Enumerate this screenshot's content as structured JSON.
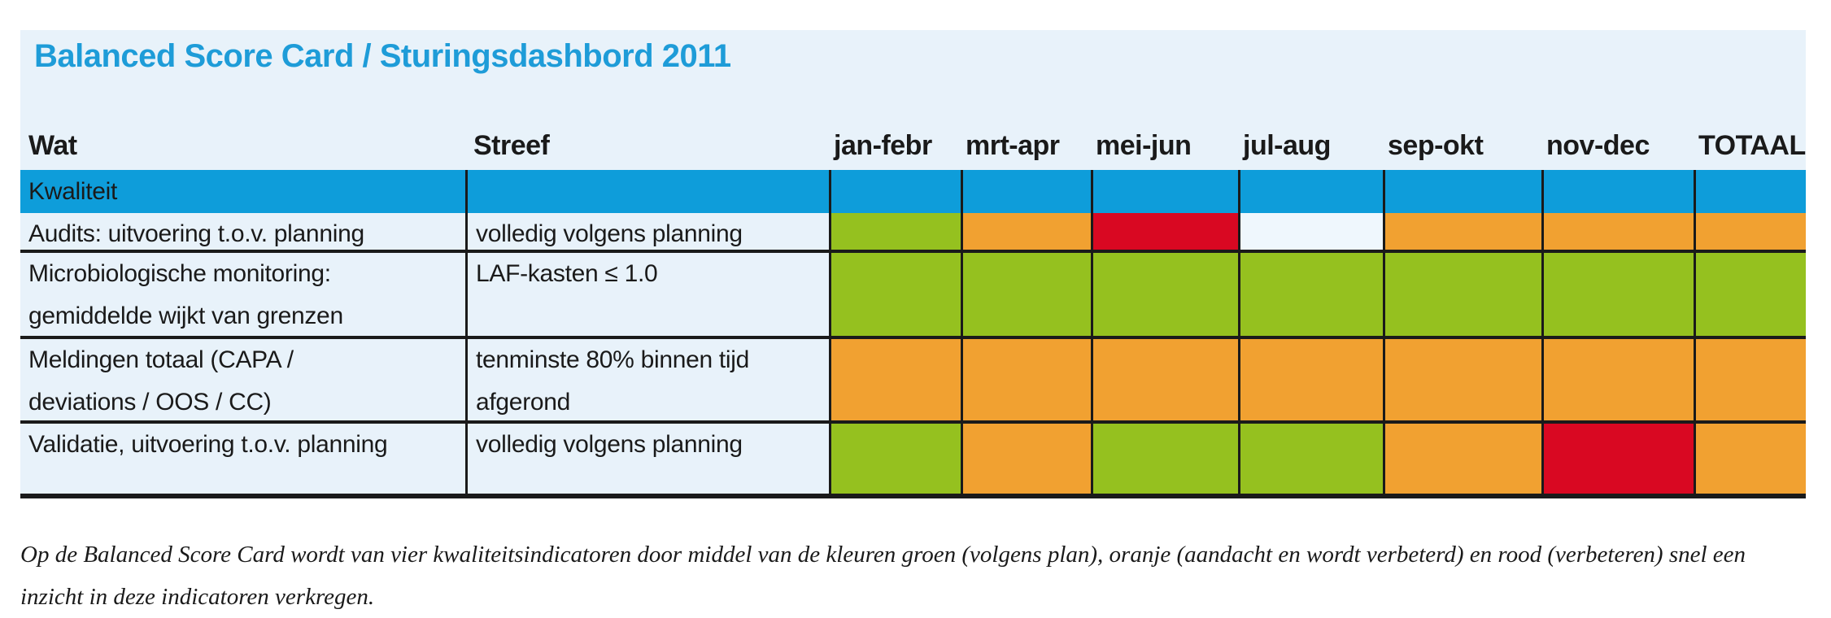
{
  "title": "Balanced Score Card / Sturingsdashbord 2011",
  "table": {
    "column_headers": [
      "Wat",
      "Streef",
      "jan-febr",
      "mrt-apr",
      "mei-jun",
      "jul-aug",
      "sep-okt",
      "nov-dec",
      "TOTAAL"
    ],
    "section_header": "Kwaliteit",
    "rows": [
      {
        "wat": "Audits: uitvoering t.o.v. planning",
        "streef": "volledig volgens planning",
        "statuses": [
          "green",
          "orange",
          "red",
          "none",
          "orange",
          "orange",
          "orange"
        ]
      },
      {
        "wat": "Microbiologische monitoring:\ngemiddelde wijkt van grenzen",
        "streef": "LAF-kasten ≤ 1.0",
        "statuses": [
          "green",
          "green",
          "green",
          "green",
          "green",
          "green",
          "green"
        ]
      },
      {
        "wat": "Meldingen totaal (CAPA /\ndeviations / OOS / CC)",
        "streef": "tenminste 80% binnen tijd\nafgerond",
        "statuses": [
          "orange",
          "orange",
          "orange",
          "orange",
          "orange",
          "orange",
          "orange"
        ]
      },
      {
        "wat": "Validatie, uitvoering t.o.v. planning",
        "streef": "volledig volgens planning",
        "statuses": [
          "green",
          "orange",
          "green",
          "green",
          "orange",
          "red",
          "orange"
        ]
      }
    ]
  },
  "note": {
    "line1": "Op de Balanced Score Card wordt van vier kwaliteitsindicatoren door middel van de kleuren groen (volgens plan), oranje (aandacht en wordt verbeterd) en rood (verbeteren) snel een",
    "line2": "inzicht in deze indicatoren verkregen."
  },
  "colors": {
    "title": "#1E9CD8",
    "section_row": "#0E9DDA",
    "card_background": "#E8F2FA",
    "grid_line": "#1A1A1A",
    "text": "#1A1A1A",
    "status": {
      "green": "#95C11F",
      "orange": "#F1A131",
      "red": "#D90822",
      "none": "#EFF7FD"
    }
  }
}
